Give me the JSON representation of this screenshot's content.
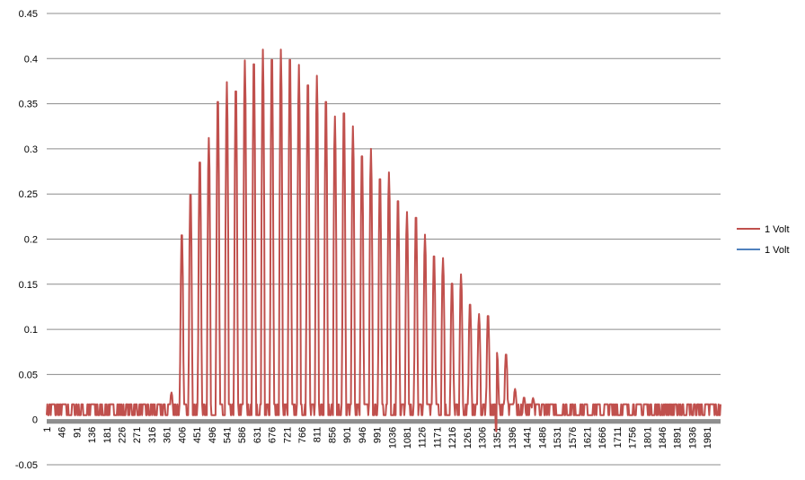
{
  "chart_data": {
    "type": "line",
    "title": "",
    "xlabel": "",
    "ylabel": "",
    "x_start": 1,
    "x_end": 2021,
    "x_ticks": [
      "1",
      "46",
      "91",
      "136",
      "181",
      "226",
      "271",
      "316",
      "361",
      "406",
      "451",
      "496",
      "541",
      "586",
      "631",
      "676",
      "721",
      "766",
      "811",
      "856",
      "901",
      "946",
      "991",
      "1036",
      "1081",
      "1126",
      "1171",
      "1216",
      "1261",
      "1306",
      "1351",
      "1396",
      "1441",
      "1486",
      "1531",
      "1576",
      "1621",
      "1666",
      "1711",
      "1756",
      "1801",
      "1846",
      "1891",
      "1936",
      "1981"
    ],
    "ylim": [
      -0.05,
      0.45
    ],
    "y_ticks": [
      "-0.05",
      "0",
      "0.05",
      "0.1",
      "0.15",
      "0.2",
      "0.25",
      "0.3",
      "0.35",
      "0.4",
      "0.45"
    ],
    "grid": true,
    "legend_position": "right",
    "noise_baseline": [
      0.005,
      0.017
    ],
    "series": [
      {
        "name": "1 Volt",
        "color": "#C0504D",
        "peak_x": [
          375,
          406,
          432,
          460,
          487,
          514,
          541,
          568,
          595,
          622,
          649,
          676,
          703,
          730,
          757,
          784,
          811,
          838,
          865,
          892,
          919,
          946,
          973,
          1000,
          1027,
          1054,
          1081,
          1108,
          1135,
          1162,
          1189,
          1216,
          1243,
          1270,
          1297,
          1324,
          1351,
          1378,
          1405,
          1432,
          1459
        ],
        "peak_y": [
          0.03,
          0.21,
          0.256,
          0.293,
          0.312,
          0.362,
          0.374,
          0.374,
          0.398,
          0.405,
          0.41,
          0.41,
          0.41,
          0.41,
          0.393,
          0.381,
          0.381,
          0.362,
          0.336,
          0.349,
          0.325,
          0.3,
          0.3,
          0.274,
          0.274,
          0.249,
          0.23,
          0.23,
          0.205,
          0.186,
          0.179,
          0.155,
          0.161,
          0.131,
          0.117,
          0.118,
          0.074,
          0.074,
          0.034,
          0.025,
          0.024
        ],
        "dips_x": [
          1347,
          1349
        ],
        "dips_y": [
          -0.01,
          -0.013
        ]
      },
      {
        "name": "1 Volt",
        "color": "#4F81BD",
        "values_hidden": true
      }
    ]
  }
}
